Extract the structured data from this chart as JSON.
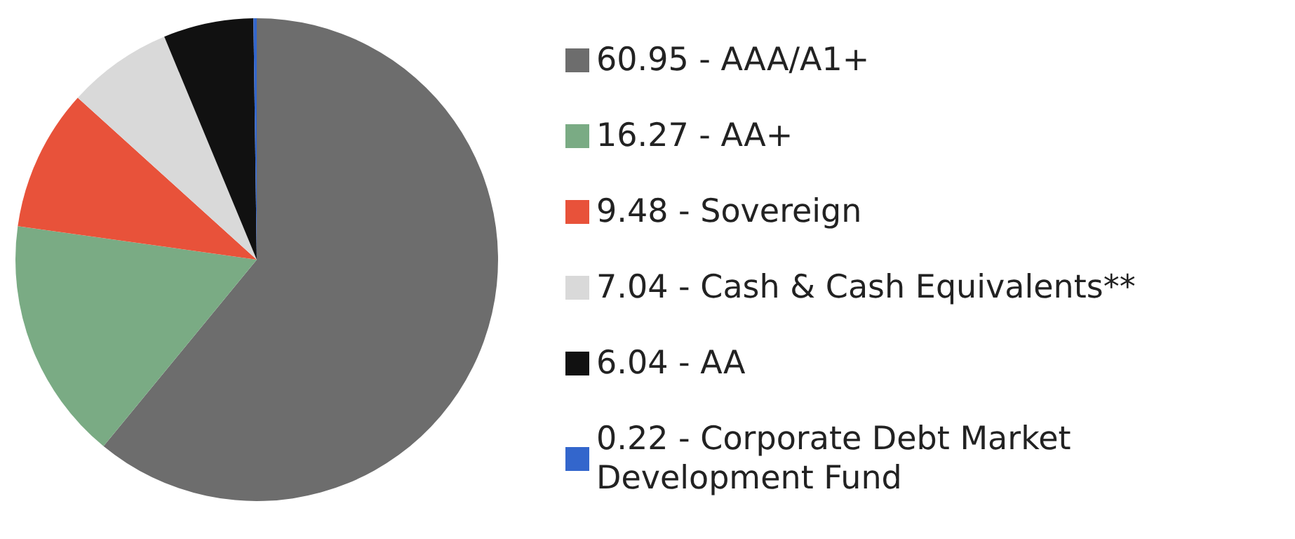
{
  "chart_data": {
    "type": "pie",
    "categories": [
      "60.95 - AAA/A1+",
      "16.27 - AA+",
      "9.48 - Sovereign",
      "7.04 - Cash & Cash Equivalents**",
      "6.04 - AA",
      "0.22 - Corporate Debt Market Development Fund"
    ],
    "values": [
      60.95,
      16.27,
      9.48,
      7.04,
      6.04,
      0.22
    ],
    "colors": [
      "#6d6d6d",
      "#7aab84",
      "#e8523a",
      "#d9d9d9",
      "#111111",
      "#3366cc"
    ],
    "legend": "right"
  }
}
